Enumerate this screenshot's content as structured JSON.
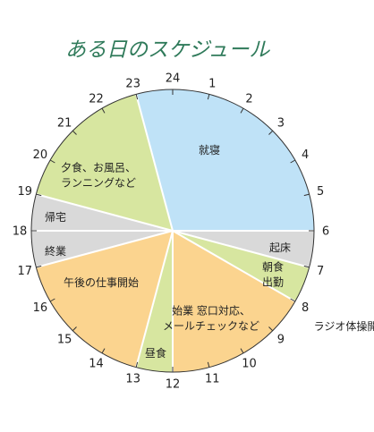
{
  "chart_data": {
    "type": "pie",
    "title": "ある日のスケジュール",
    "unit": "hours",
    "hour_labels": [
      "24",
      "1",
      "2",
      "3",
      "4",
      "5",
      "6",
      "7",
      "8",
      "9",
      "10",
      "11",
      "12",
      "13",
      "14",
      "15",
      "16",
      "17",
      "18",
      "19",
      "20",
      "21",
      "22",
      "23"
    ],
    "segments": [
      {
        "name": "就寝",
        "lines": [
          "就寝"
        ],
        "start": 23,
        "end": 6,
        "color": "#bfe2f7"
      },
      {
        "name": "起床",
        "lines": [
          "起床"
        ],
        "start": 6,
        "end": 7,
        "color": "#d9d9d9"
      },
      {
        "name": "朝食、出勤",
        "lines": [
          "朝食",
          "出勤"
        ],
        "start": 7,
        "end": 8,
        "color": "#d7e6a0"
      },
      {
        "name": "始業 窓口対応、メールチェックなど",
        "lines": [
          "始業 窓口対応、",
          "メールチェックなど"
        ],
        "start": 8,
        "end": 12,
        "color": "#fbd48f"
      },
      {
        "name": "昼食",
        "lines": [
          "昼食"
        ],
        "start": 12,
        "end": 13,
        "color": "#d7e6a0"
      },
      {
        "name": "午後の仕事開始",
        "lines": [
          "午後の仕事開始"
        ],
        "start": 13,
        "end": 17,
        "color": "#fbd48f"
      },
      {
        "name": "終業",
        "lines": [
          "終業"
        ],
        "start": 17,
        "end": 18,
        "color": "#d9d9d9"
      },
      {
        "name": "帰宅",
        "lines": [
          "帰宅"
        ],
        "start": 18,
        "end": 19,
        "color": "#d9d9d9"
      },
      {
        "name": "夕食、お風呂、ランニングなど",
        "lines": [
          "夕食、お風呂、",
          "ランニングなど"
        ],
        "start": 19,
        "end": 23,
        "color": "#d7e6a0"
      }
    ],
    "annotations": [
      {
        "text": "ラジオ体操開始",
        "at_hour": 8.5
      }
    ]
  }
}
